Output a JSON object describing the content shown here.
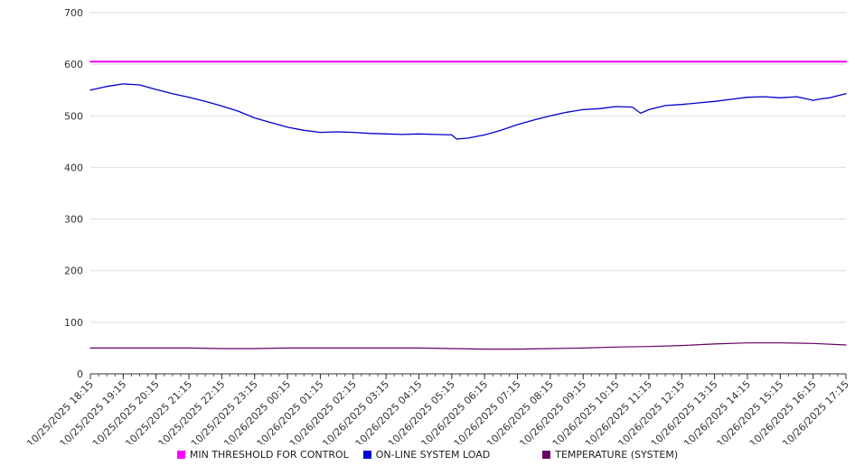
{
  "chart_data": {
    "type": "line",
    "title": "",
    "xlabel": "",
    "ylabel": "",
    "ylim": [
      0,
      700
    ],
    "y_ticks": [
      0,
      100,
      200,
      300,
      400,
      500,
      600,
      700
    ],
    "grid": true,
    "legend_position": "bottom",
    "x_labels": [
      "10/25/2025 18:15",
      "10/25/2025 19:15",
      "10/25/2025 20:15",
      "10/25/2025 21:15",
      "10/25/2025 22:15",
      "10/25/2025 23:15",
      "10/26/2025 00:15",
      "10/26/2025 01:15",
      "10/26/2025 02:15",
      "10/26/2025 03:15",
      "10/26/2025 04:15",
      "10/26/2025 05:15",
      "10/26/2025 06:15",
      "10/26/2025 07:15",
      "10/26/2025 08:15",
      "10/26/2025 09:15",
      "10/26/2025 10:15",
      "10/26/2025 11:15",
      "10/26/2025 12:15",
      "10/26/2025 13:15",
      "10/26/2025 14:15",
      "10/26/2025 15:15",
      "10/26/2025 16:15",
      "10/26/2025 17:15"
    ],
    "series": [
      {
        "name": "MIN THRESHOLD FOR CONTROL",
        "color": "#ff00ff",
        "width": 2,
        "x": [
          0,
          23
        ],
        "values": [
          605,
          605
        ]
      },
      {
        "name": "ON-LINE SYSTEM LOAD",
        "color": "#0000cd",
        "width": 1.3,
        "x": [
          0,
          0.5,
          1,
          1.5,
          2,
          2.5,
          3,
          3.5,
          4,
          4.5,
          5,
          5.5,
          6,
          6.5,
          7,
          7.5,
          8,
          8.5,
          9,
          9.5,
          10,
          10.5,
          11,
          11.15,
          11.5,
          12,
          12.5,
          13,
          13.5,
          14,
          14.5,
          15,
          15.5,
          16,
          16.5,
          16.75,
          17,
          17.5,
          18,
          18.5,
          19,
          19.5,
          20,
          20.5,
          21,
          21.5,
          22,
          22.25,
          22.5,
          23
        ],
        "values": [
          550,
          557,
          562,
          560,
          551,
          543,
          536,
          528,
          519,
          509,
          496,
          487,
          478,
          472,
          468,
          469,
          468,
          466,
          465,
          464,
          465,
          464,
          463,
          455,
          457,
          463,
          472,
          483,
          492,
          500,
          507,
          512,
          514,
          518,
          517,
          505,
          512,
          520,
          522,
          525,
          528,
          532,
          536,
          537,
          535,
          537,
          530,
          533,
          535,
          543
        ]
      },
      {
        "name": "TEMPERATURE (SYSTEM)",
        "color": "#660066",
        "width": 1.2,
        "x": [
          0,
          1,
          2,
          3,
          4,
          5,
          6,
          7,
          8,
          9,
          10,
          11,
          12,
          13,
          14,
          15,
          16,
          17,
          18,
          19,
          20,
          21,
          22,
          23
        ],
        "values": [
          50,
          50,
          50,
          50,
          49,
          49,
          50,
          50,
          50,
          50,
          50,
          49,
          48,
          48,
          49,
          50,
          52,
          53,
          55,
          58,
          60,
          60,
          59,
          56
        ]
      }
    ]
  }
}
